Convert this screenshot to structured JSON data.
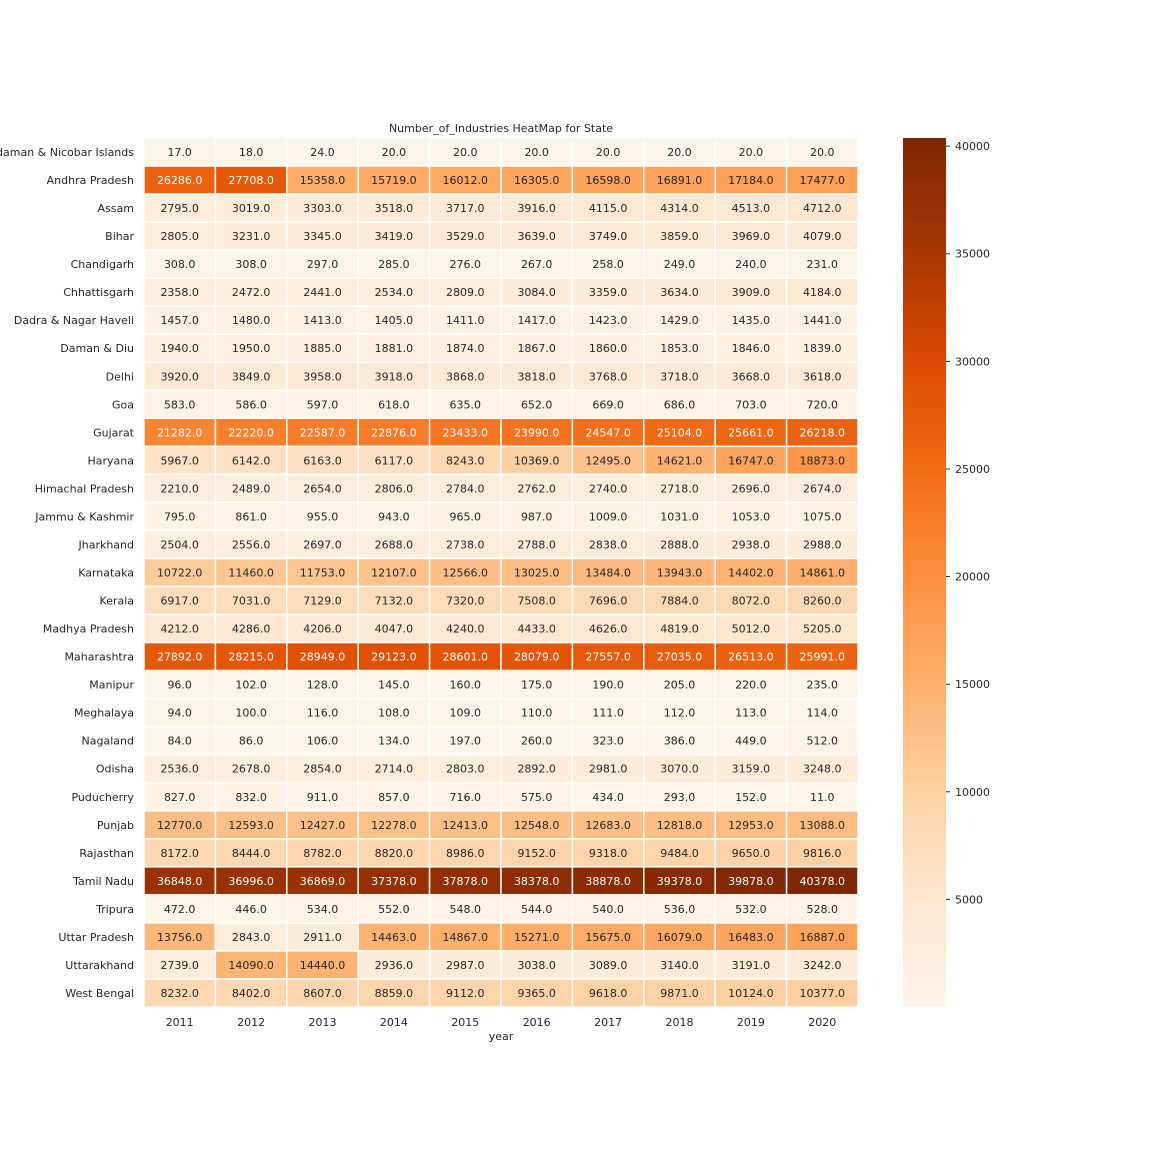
{
  "chart_data": {
    "type": "heatmap",
    "title": "Number_of_Industries HeatMap for State",
    "xlabel": "year",
    "ylabel": "",
    "colormap": "Oranges",
    "value_range": [
      0,
      40378
    ],
    "colorbar_ticks": [
      "5000",
      "10000",
      "15000",
      "20000",
      "25000",
      "30000",
      "35000",
      "40000"
    ],
    "x": [
      "2011",
      "2012",
      "2013",
      "2014",
      "2015",
      "2016",
      "2017",
      "2018",
      "2019",
      "2020"
    ],
    "y": [
      "Andaman & Nicobar Islands",
      "Andhra Pradesh",
      "Assam",
      "Bihar",
      "Chandigarh",
      "Chhattisgarh",
      "Dadra & Nagar Haveli",
      "Daman & Diu",
      "Delhi",
      "Goa",
      "Gujarat",
      "Haryana",
      "Himachal Pradesh",
      "Jammu & Kashmir",
      "Jharkhand",
      "Karnataka",
      "Kerala",
      "Madhya Pradesh",
      "Maharashtra",
      "Manipur",
      "Meghalaya",
      "Nagaland",
      "Odisha",
      "Puducherry",
      "Punjab",
      "Rajasthan",
      "Tamil Nadu",
      "Tripura",
      "Uttar Pradesh",
      "Uttarakhand",
      "West Bengal"
    ],
    "values": [
      [
        17.0,
        18.0,
        24.0,
        20.0,
        20.0,
        20.0,
        20.0,
        20.0,
        20.0,
        20.0
      ],
      [
        26286.0,
        27708.0,
        15358.0,
        15719.0,
        16012.0,
        16305.0,
        16598.0,
        16891.0,
        17184.0,
        17477.0
      ],
      [
        2795.0,
        3019.0,
        3303.0,
        3518.0,
        3717.0,
        3916.0,
        4115.0,
        4314.0,
        4513.0,
        4712.0
      ],
      [
        2805.0,
        3231.0,
        3345.0,
        3419.0,
        3529.0,
        3639.0,
        3749.0,
        3859.0,
        3969.0,
        4079.0
      ],
      [
        308.0,
        308.0,
        297.0,
        285.0,
        276.0,
        267.0,
        258.0,
        249.0,
        240.0,
        231.0
      ],
      [
        2358.0,
        2472.0,
        2441.0,
        2534.0,
        2809.0,
        3084.0,
        3359.0,
        3634.0,
        3909.0,
        4184.0
      ],
      [
        1457.0,
        1480.0,
        1413.0,
        1405.0,
        1411.0,
        1417.0,
        1423.0,
        1429.0,
        1435.0,
        1441.0
      ],
      [
        1940.0,
        1950.0,
        1885.0,
        1881.0,
        1874.0,
        1867.0,
        1860.0,
        1853.0,
        1846.0,
        1839.0
      ],
      [
        3920.0,
        3849.0,
        3958.0,
        3918.0,
        3868.0,
        3818.0,
        3768.0,
        3718.0,
        3668.0,
        3618.0
      ],
      [
        583.0,
        586.0,
        597.0,
        618.0,
        635.0,
        652.0,
        669.0,
        686.0,
        703.0,
        720.0
      ],
      [
        21282.0,
        22220.0,
        22587.0,
        22876.0,
        23433.0,
        23990.0,
        24547.0,
        25104.0,
        25661.0,
        26218.0
      ],
      [
        5967.0,
        6142.0,
        6163.0,
        6117.0,
        8243.0,
        10369.0,
        12495.0,
        14621.0,
        16747.0,
        18873.0
      ],
      [
        2210.0,
        2489.0,
        2654.0,
        2806.0,
        2784.0,
        2762.0,
        2740.0,
        2718.0,
        2696.0,
        2674.0
      ],
      [
        795.0,
        861.0,
        955.0,
        943.0,
        965.0,
        987.0,
        1009.0,
        1031.0,
        1053.0,
        1075.0
      ],
      [
        2504.0,
        2556.0,
        2697.0,
        2688.0,
        2738.0,
        2788.0,
        2838.0,
        2888.0,
        2938.0,
        2988.0
      ],
      [
        10722.0,
        11460.0,
        11753.0,
        12107.0,
        12566.0,
        13025.0,
        13484.0,
        13943.0,
        14402.0,
        14861.0
      ],
      [
        6917.0,
        7031.0,
        7129.0,
        7132.0,
        7320.0,
        7508.0,
        7696.0,
        7884.0,
        8072.0,
        8260.0
      ],
      [
        4212.0,
        4286.0,
        4206.0,
        4047.0,
        4240.0,
        4433.0,
        4626.0,
        4819.0,
        5012.0,
        5205.0
      ],
      [
        27892.0,
        28215.0,
        28949.0,
        29123.0,
        28601.0,
        28079.0,
        27557.0,
        27035.0,
        26513.0,
        25991.0
      ],
      [
        96.0,
        102.0,
        128.0,
        145.0,
        160.0,
        175.0,
        190.0,
        205.0,
        220.0,
        235.0
      ],
      [
        94.0,
        100.0,
        116.0,
        108.0,
        109.0,
        110.0,
        111.0,
        112.0,
        113.0,
        114.0
      ],
      [
        84.0,
        86.0,
        106.0,
        134.0,
        197.0,
        260.0,
        323.0,
        386.0,
        449.0,
        512.0
      ],
      [
        2536.0,
        2678.0,
        2854.0,
        2714.0,
        2803.0,
        2892.0,
        2981.0,
        3070.0,
        3159.0,
        3248.0
      ],
      [
        827.0,
        832.0,
        911.0,
        857.0,
        716.0,
        575.0,
        434.0,
        293.0,
        152.0,
        11.0
      ],
      [
        12770.0,
        12593.0,
        12427.0,
        12278.0,
        12413.0,
        12548.0,
        12683.0,
        12818.0,
        12953.0,
        13088.0
      ],
      [
        8172.0,
        8444.0,
        8782.0,
        8820.0,
        8986.0,
        9152.0,
        9318.0,
        9484.0,
        9650.0,
        9816.0
      ],
      [
        36848.0,
        36996.0,
        36869.0,
        37378.0,
        37878.0,
        38378.0,
        38878.0,
        39378.0,
        39878.0,
        40378.0
      ],
      [
        472.0,
        446.0,
        534.0,
        552.0,
        548.0,
        544.0,
        540.0,
        536.0,
        532.0,
        528.0
      ],
      [
        13756.0,
        2843.0,
        2911.0,
        14463.0,
        14867.0,
        15271.0,
        15675.0,
        16079.0,
        16483.0,
        16887.0
      ],
      [
        2739.0,
        14090.0,
        14440.0,
        2936.0,
        2987.0,
        3038.0,
        3089.0,
        3140.0,
        3191.0,
        3242.0
      ],
      [
        8232.0,
        8402.0,
        8607.0,
        8859.0,
        9112.0,
        9365.0,
        9618.0,
        9871.0,
        10124.0,
        10377.0
      ]
    ]
  }
}
